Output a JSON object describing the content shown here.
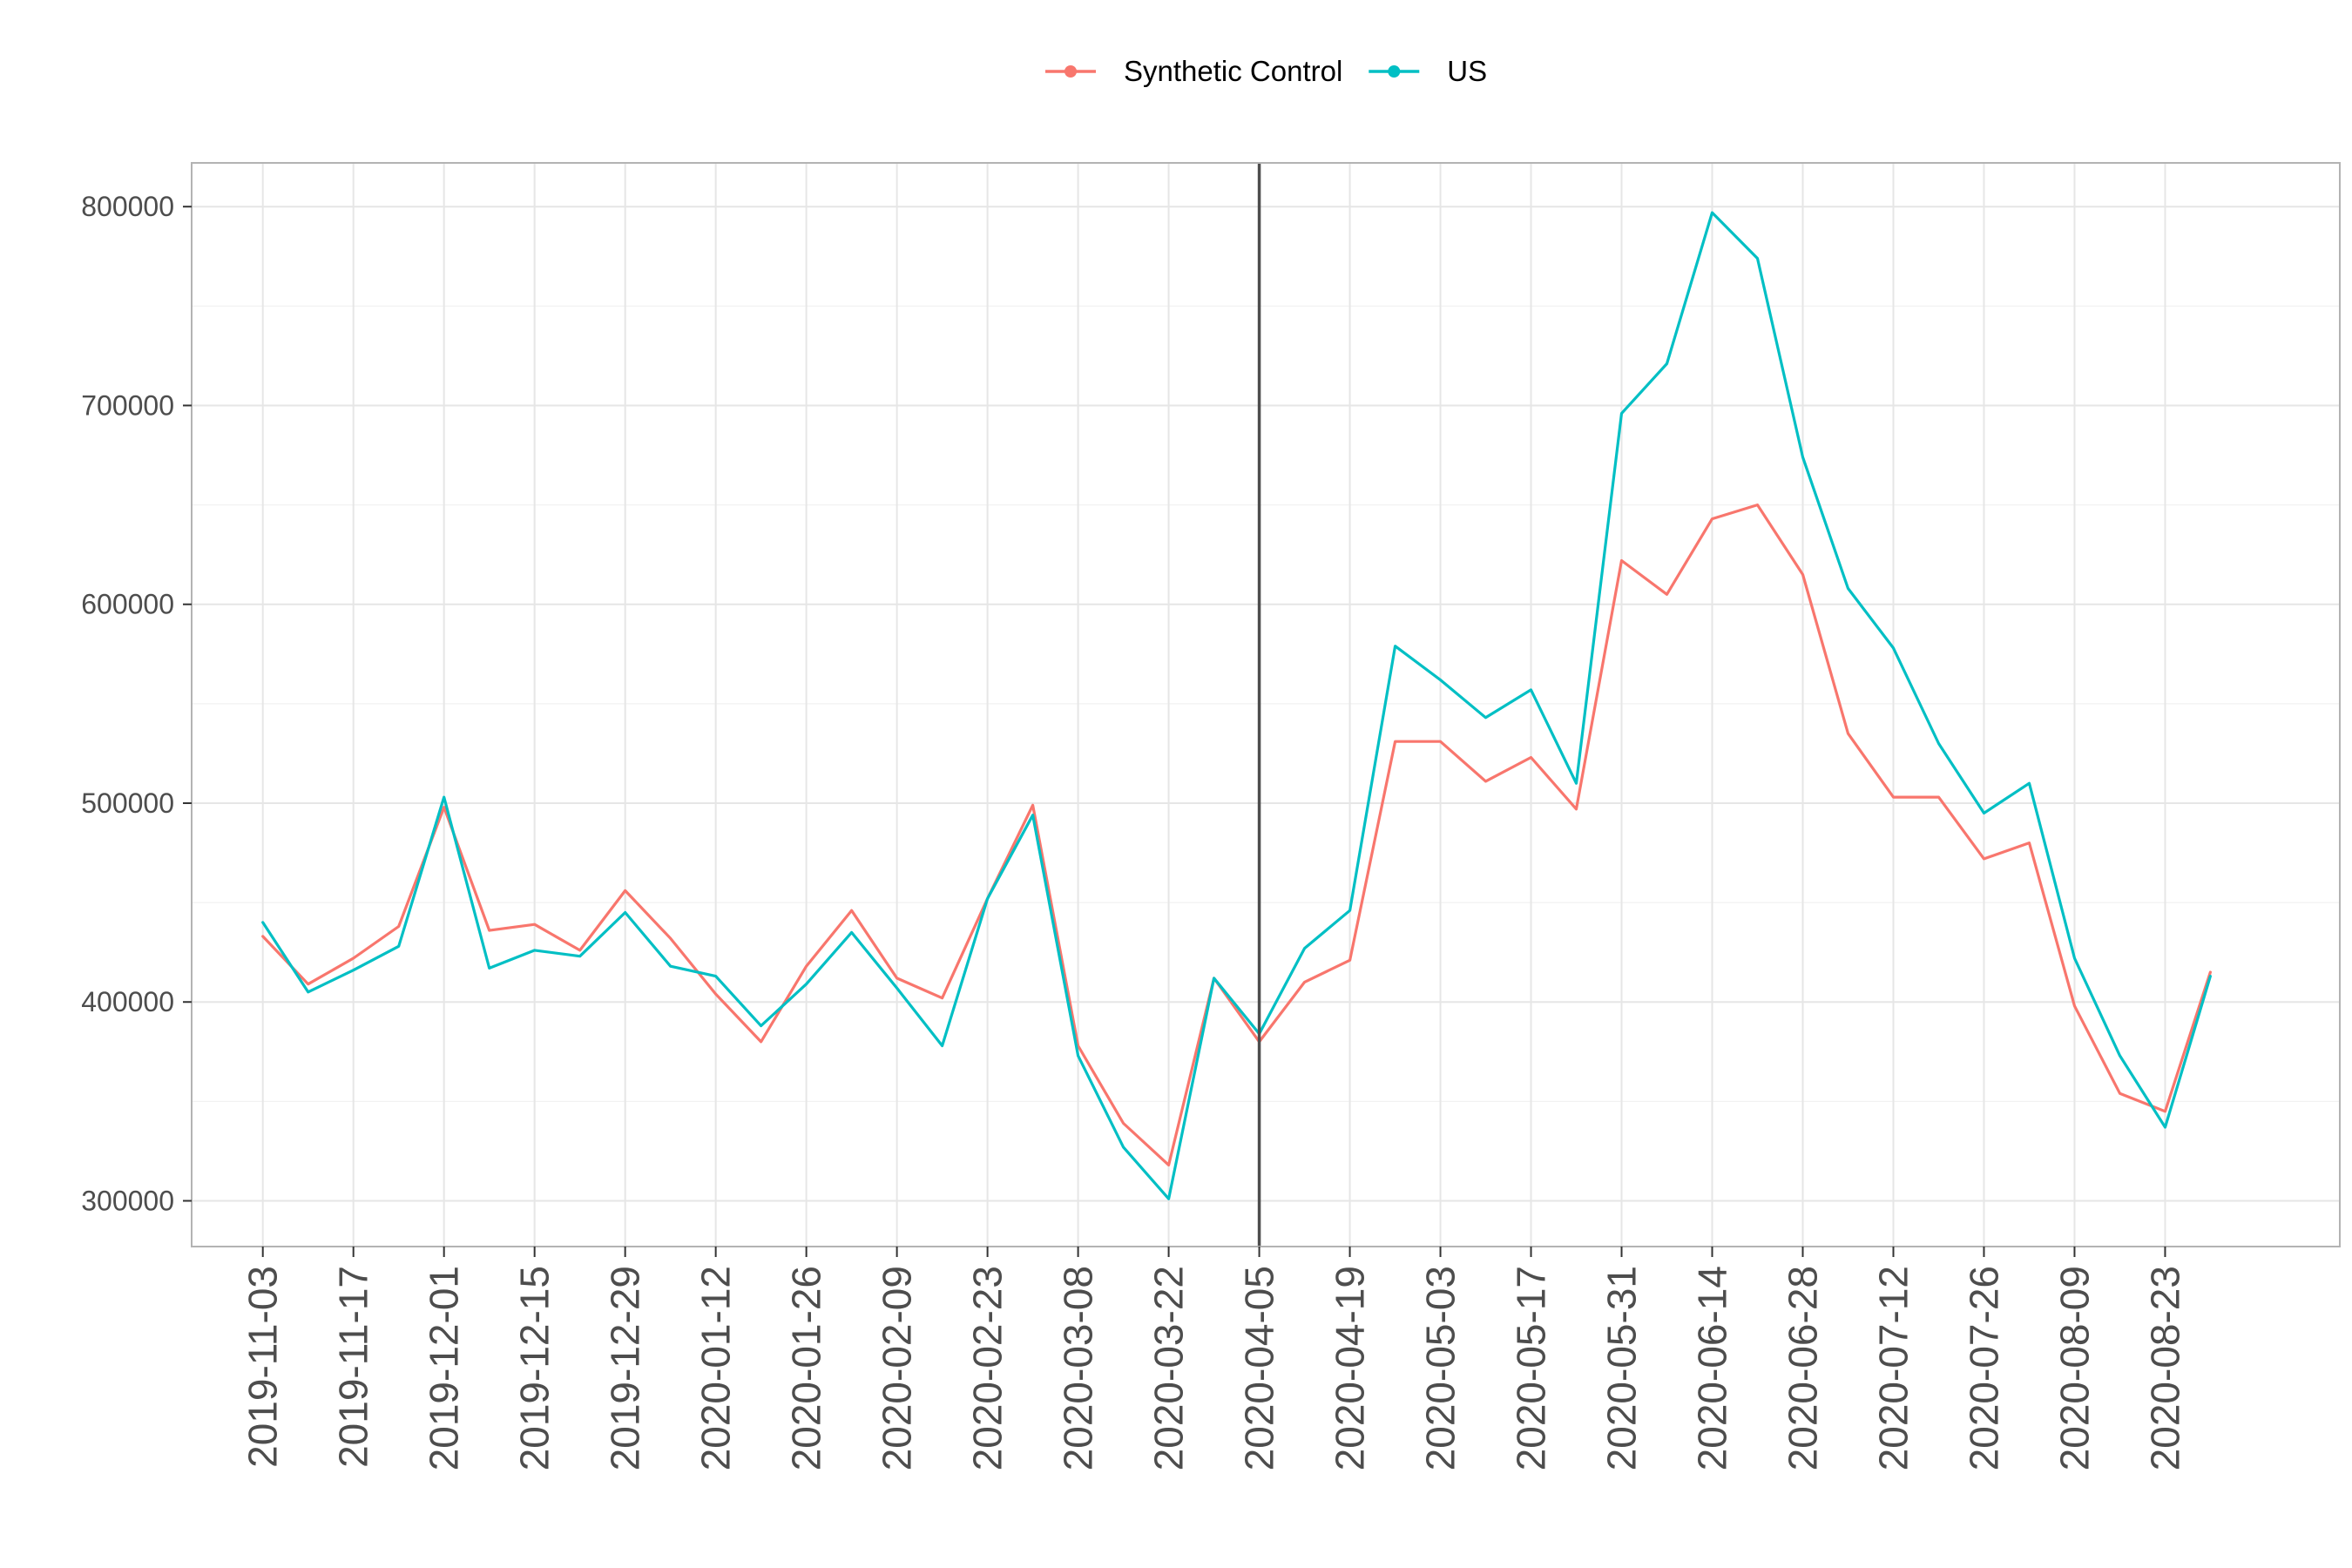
{
  "chart_data": {
    "type": "line",
    "title": "",
    "xlabel": "",
    "ylabel": "",
    "ylim": [
      277000,
      822000
    ],
    "x_range": [
      "2019-10-23",
      "2020-09-19"
    ],
    "yticks": [
      300000,
      400000,
      500000,
      600000,
      700000,
      800000
    ],
    "xticks": [
      "2019-11-03",
      "2019-11-17",
      "2019-12-01",
      "2019-12-15",
      "2019-12-29",
      "2020-01-12",
      "2020-01-26",
      "2020-02-09",
      "2020-02-23",
      "2020-03-08",
      "2020-03-22",
      "2020-04-05",
      "2020-04-19",
      "2020-05-03",
      "2020-05-17",
      "2020-05-31",
      "2020-06-14",
      "2020-06-28",
      "2020-07-12",
      "2020-07-26",
      "2020-08-09",
      "2020-08-23"
    ],
    "intervention_date": "2020-04-05",
    "grid": true,
    "legend_position": "top",
    "x": [
      "2019-11-03",
      "2019-11-10",
      "2019-11-17",
      "2019-11-24",
      "2019-12-01",
      "2019-12-08",
      "2019-12-15",
      "2019-12-22",
      "2019-12-29",
      "2020-01-05",
      "2020-01-12",
      "2020-01-19",
      "2020-01-26",
      "2020-02-02",
      "2020-02-09",
      "2020-02-16",
      "2020-02-23",
      "2020-03-01",
      "2020-03-08",
      "2020-03-15",
      "2020-03-22",
      "2020-03-29",
      "2020-04-05",
      "2020-04-12",
      "2020-04-19",
      "2020-04-26",
      "2020-05-03",
      "2020-05-10",
      "2020-05-17",
      "2020-05-24",
      "2020-05-31",
      "2020-06-07",
      "2020-06-14",
      "2020-06-21",
      "2020-06-28",
      "2020-07-05",
      "2020-07-12",
      "2020-07-19",
      "2020-07-26",
      "2020-08-02",
      "2020-08-09",
      "2020-08-16",
      "2020-08-23",
      "2020-08-30"
    ],
    "series": [
      {
        "name": "Synthetic Control",
        "color": "#F8766D",
        "values": [
          433000,
          409000,
          422000,
          438000,
          498000,
          436000,
          439000,
          426000,
          456000,
          432000,
          404000,
          380000,
          418000,
          446000,
          412000,
          402000,
          452000,
          499000,
          378000,
          339000,
          318000,
          412000,
          380000,
          410000,
          421000,
          531000,
          531000,
          511000,
          523000,
          497000,
          622000,
          605000,
          643000,
          650000,
          615000,
          535000,
          503000,
          503000,
          472000,
          480000,
          398000,
          354000,
          345000,
          415000
        ]
      },
      {
        "name": "US",
        "color": "#00BFC4",
        "values": [
          440000,
          405000,
          416000,
          428000,
          503000,
          417000,
          426000,
          423000,
          445000,
          418000,
          413000,
          388000,
          409000,
          435000,
          407000,
          378000,
          452000,
          494000,
          373000,
          327000,
          301000,
          412000,
          384000,
          427000,
          446000,
          579000,
          562000,
          543000,
          557000,
          510000,
          696000,
          721000,
          797000,
          774000,
          674000,
          608000,
          578000,
          530000,
          495000,
          510000,
          422000,
          373000,
          337000,
          413000
        ]
      }
    ]
  }
}
